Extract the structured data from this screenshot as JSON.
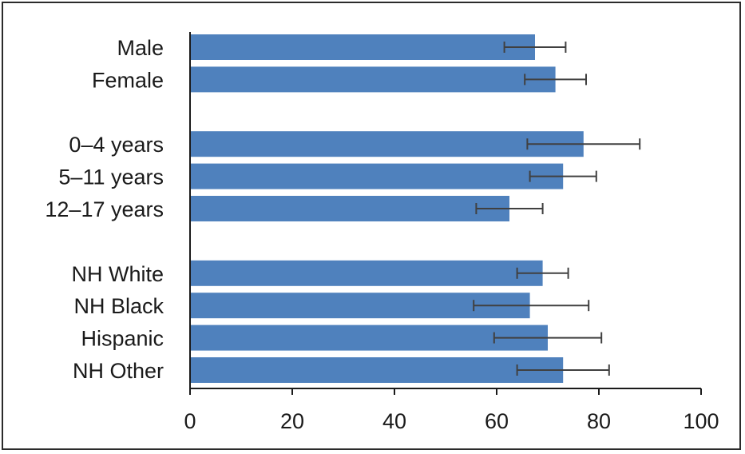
{
  "chart_data": {
    "type": "bar",
    "orientation": "horizontal",
    "title": "",
    "xlabel": "",
    "ylabel": "",
    "xlim": [
      0,
      100
    ],
    "xticks": [
      0,
      20,
      40,
      60,
      80,
      100
    ],
    "grid": false,
    "legend": "none",
    "bar_color": "#4f81bd",
    "errorbar_color": "#404040",
    "groups": [
      {
        "categories": [
          {
            "label": "Male",
            "value": 67.5,
            "err_low": 61.5,
            "err_high": 73.5
          },
          {
            "label": "Female",
            "value": 71.5,
            "err_low": 65.5,
            "err_high": 77.5
          }
        ]
      },
      {
        "categories": [
          {
            "label": "0–4 years",
            "value": 77.0,
            "err_low": 66.0,
            "err_high": 88.0
          },
          {
            "label": "5–11 years",
            "value": 73.0,
            "err_low": 66.5,
            "err_high": 79.5
          },
          {
            "label": "12–17 years",
            "value": 62.5,
            "err_low": 56.0,
            "err_high": 69.0
          }
        ]
      },
      {
        "categories": [
          {
            "label": "NH White",
            "value": 69.0,
            "err_low": 64.0,
            "err_high": 74.0
          },
          {
            "label": "NH Black",
            "value": 66.5,
            "err_low": 55.5,
            "err_high": 78.0
          },
          {
            "label": "Hispanic",
            "value": 70.0,
            "err_low": 59.5,
            "err_high": 80.5
          },
          {
            "label": "NH Other",
            "value": 73.0,
            "err_low": 64.0,
            "err_high": 82.0
          }
        ]
      }
    ]
  }
}
